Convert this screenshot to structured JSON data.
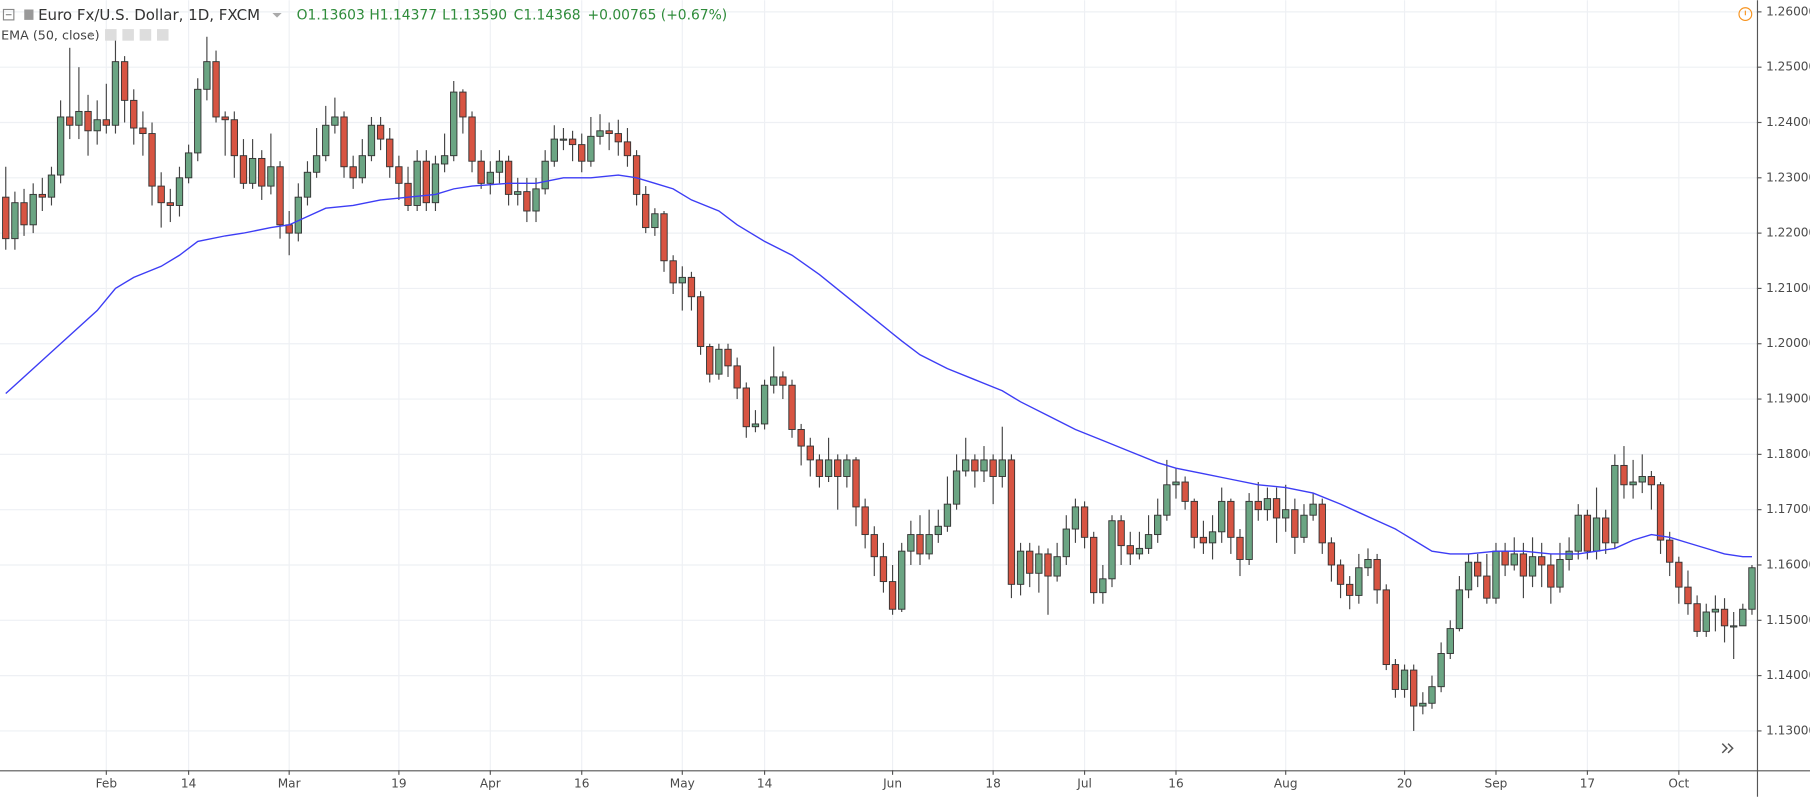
{
  "chart_data": {
    "type": "candlestick",
    "legend": {
      "symbol": "Euro Fx/U.S. Dollar, 1D, FXCM",
      "open": "O1.13603",
      "high": "H1.14377",
      "low": "L1.13590",
      "close": "C1.14368",
      "change": "+0.00765 (+0.67%)"
    },
    "up_color": "#6ba583",
    "down_color": "#d75442",
    "grid": true,
    "ylim": [
      1.1229,
      1.2621
    ],
    "yticks": [
      {
        "value": 1.13,
        "label": "1.13000"
      },
      {
        "value": 1.14,
        "label": "1.14000"
      },
      {
        "value": 1.15,
        "label": "1.15000"
      },
      {
        "value": 1.16,
        "label": "1.16000"
      },
      {
        "value": 1.17,
        "label": "1.17000"
      },
      {
        "value": 1.18,
        "label": "1.18000"
      },
      {
        "value": 1.19,
        "label": "1.19000"
      },
      {
        "value": 1.2,
        "label": "1.20000"
      },
      {
        "value": 1.21,
        "label": "1.21000"
      },
      {
        "value": 1.22,
        "label": "1.22000"
      },
      {
        "value": 1.23,
        "label": "1.23000"
      },
      {
        "value": 1.24,
        "label": "1.24000"
      },
      {
        "value": 1.25,
        "label": "1.25000"
      },
      {
        "value": 1.26,
        "label": "1.26000"
      }
    ],
    "xlim": [
      -0.63,
      191.54
    ],
    "xticks": [
      {
        "value": 11,
        "label": "Feb"
      },
      {
        "value": 20,
        "label": "14"
      },
      {
        "value": 31,
        "label": "Mar"
      },
      {
        "value": 43,
        "label": "19"
      },
      {
        "value": 53,
        "label": "Apr"
      },
      {
        "value": 63,
        "label": "16"
      },
      {
        "value": 74,
        "label": "May"
      },
      {
        "value": 83,
        "label": "14"
      },
      {
        "value": 97,
        "label": "Jun"
      },
      {
        "value": 108,
        "label": "18"
      },
      {
        "value": 118,
        "label": "Jul"
      },
      {
        "value": 128,
        "label": "16"
      },
      {
        "value": 140,
        "label": "Aug"
      },
      {
        "value": 153,
        "label": "20"
      },
      {
        "value": 163,
        "label": "Sep"
      },
      {
        "value": 173,
        "label": "17"
      },
      {
        "value": 183,
        "label": "Oct"
      }
    ],
    "open": [
      1.2265,
      1.219,
      1.2255,
      1.2215,
      1.227,
      1.2265,
      1.2305,
      1.241,
      1.2395,
      1.242,
      1.2385,
      1.2405,
      1.2395,
      1.251,
      1.244,
      1.239,
      1.238,
      1.2285,
      1.2255,
      1.225,
      1.23,
      1.2345,
      1.246,
      1.251,
      1.241,
      1.2405,
      1.234,
      1.229,
      1.2335,
      1.2285,
      1.232,
      1.2215,
      1.22,
      1.2265,
      1.231,
      1.234,
      1.2395,
      1.241,
      1.232,
      1.23,
      1.234,
      1.2395,
      1.237,
      1.232,
      1.229,
      1.225,
      1.233,
      1.2255,
      1.2325,
      1.234,
      1.2455,
      1.241,
      1.233,
      1.229,
      1.231,
      1.233,
      1.227,
      1.2275,
      1.224,
      1.228,
      1.233,
      1.237,
      1.237,
      1.236,
      1.233,
      1.2375,
      1.2385,
      1.238,
      1.2365,
      1.234,
      1.227,
      1.221,
      1.2235,
      1.215,
      1.211,
      1.212,
      1.2085,
      1.1995,
      1.1945,
      1.199,
      1.196,
      1.192,
      1.185,
      1.1855,
      1.1925,
      1.194,
      1.1925,
      1.1845,
      1.1815,
      1.179,
      1.176,
      1.179,
      1.176,
      1.179,
      1.1705,
      1.1655,
      1.1615,
      1.157,
      1.152,
      1.1625,
      1.1655,
      1.162,
      1.1655,
      1.167,
      1.171,
      1.177,
      1.179,
      1.177,
      1.179,
      1.176,
      1.179,
      1.1565,
      1.1625,
      1.1585,
      1.162,
      1.158,
      1.1615,
      1.1665,
      1.1705,
      1.165,
      1.155,
      1.1575,
      1.168,
      1.1635,
      1.162,
      1.163,
      1.1655,
      1.169,
      1.1745,
      1.175,
      1.1715,
      1.165,
      1.164,
      1.166,
      1.1715,
      1.165,
      1.161,
      1.1715,
      1.17,
      1.172,
      1.1685,
      1.17,
      1.165,
      1.169,
      1.171,
      1.164,
      1.16,
      1.1565,
      1.1545,
      1.1595,
      1.161,
      1.1555,
      1.142,
      1.1375,
      1.141,
      1.1345,
      1.135,
      1.138,
      1.144,
      1.1485,
      1.1555,
      1.1605,
      1.158,
      1.154,
      1.1625,
      1.16,
      1.162,
      1.158,
      1.1615,
      1.16,
      1.156,
      1.161,
      1.1625,
      1.169,
      1.1625,
      1.1685,
      1.164,
      1.178,
      1.1745,
      1.175,
      1.176,
      1.1745,
      1.1645,
      1.1605,
      1.156,
      1.153,
      1.148,
      1.1515,
      1.152,
      1.149,
      1.149,
      1.152
    ],
    "high": [
      1.232,
      1.2275,
      1.228,
      1.229,
      1.23,
      1.232,
      1.244,
      1.2535,
      1.25,
      1.245,
      1.244,
      1.247,
      1.2555,
      1.252,
      1.246,
      1.242,
      1.24,
      1.231,
      1.228,
      1.232,
      1.236,
      1.248,
      1.2555,
      1.253,
      1.242,
      1.242,
      1.237,
      1.237,
      1.235,
      1.238,
      1.233,
      1.224,
      1.229,
      1.233,
      1.239,
      1.243,
      1.2445,
      1.242,
      1.234,
      1.237,
      1.241,
      1.241,
      1.239,
      1.234,
      1.232,
      1.235,
      1.235,
      1.234,
      1.238,
      1.2475,
      1.246,
      1.242,
      1.235,
      1.233,
      1.235,
      1.234,
      1.23,
      1.23,
      1.23,
      1.235,
      1.2395,
      1.239,
      1.2385,
      1.238,
      1.241,
      1.2415,
      1.24,
      1.2405,
      1.239,
      1.235,
      1.2285,
      1.2245,
      1.224,
      1.216,
      1.214,
      1.213,
      1.2095,
      1.2,
      1.2,
      1.2,
      1.1975,
      1.193,
      1.188,
      1.1935,
      1.1995,
      1.195,
      1.1935,
      1.1855,
      1.183,
      1.18,
      1.183,
      1.18,
      1.18,
      1.1795,
      1.172,
      1.167,
      1.164,
      1.16,
      1.164,
      1.168,
      1.169,
      1.17,
      1.17,
      1.176,
      1.18,
      1.183,
      1.18,
      1.1815,
      1.18,
      1.185,
      1.18,
      1.164,
      1.164,
      1.1635,
      1.163,
      1.164,
      1.169,
      1.172,
      1.1715,
      1.166,
      1.16,
      1.169,
      1.169,
      1.166,
      1.166,
      1.169,
      1.172,
      1.179,
      1.1775,
      1.176,
      1.172,
      1.168,
      1.169,
      1.174,
      1.172,
      1.1665,
      1.173,
      1.175,
      1.174,
      1.174,
      1.1745,
      1.172,
      1.171,
      1.173,
      1.172,
      1.165,
      1.161,
      1.158,
      1.162,
      1.163,
      1.162,
      1.1565,
      1.143,
      1.142,
      1.142,
      1.137,
      1.14,
      1.146,
      1.15,
      1.158,
      1.162,
      1.162,
      1.162,
      1.164,
      1.164,
      1.165,
      1.164,
      1.165,
      1.164,
      1.162,
      1.164,
      1.165,
      1.171,
      1.17,
      1.174,
      1.17,
      1.18,
      1.1815,
      1.179,
      1.18,
      1.177,
      1.175,
      1.166,
      1.1615,
      1.159,
      1.1545,
      1.153,
      1.1545,
      1.154,
      1.1515,
      1.153,
      1.16
    ],
    "low": [
      1.217,
      1.217,
      1.2195,
      1.22,
      1.224,
      1.225,
      1.229,
      1.237,
      1.237,
      1.234,
      1.236,
      1.238,
      1.238,
      1.24,
      1.236,
      1.234,
      1.225,
      1.221,
      1.222,
      1.223,
      1.229,
      1.233,
      1.244,
      1.24,
      1.234,
      1.23,
      1.228,
      1.228,
      1.226,
      1.227,
      1.219,
      1.216,
      1.2185,
      1.225,
      1.23,
      1.233,
      1.238,
      1.23,
      1.228,
      1.229,
      1.233,
      1.235,
      1.23,
      1.226,
      1.224,
      1.224,
      1.224,
      1.224,
      1.231,
      1.233,
      1.238,
      1.231,
      1.228,
      1.227,
      1.229,
      1.225,
      1.225,
      1.222,
      1.222,
      1.227,
      1.232,
      1.235,
      1.233,
      1.231,
      1.232,
      1.236,
      1.235,
      1.234,
      1.232,
      1.225,
      1.22,
      1.2195,
      1.213,
      1.209,
      1.206,
      1.206,
      1.198,
      1.193,
      1.1935,
      1.194,
      1.19,
      1.183,
      1.184,
      1.1845,
      1.191,
      1.19,
      1.183,
      1.178,
      1.176,
      1.174,
      1.175,
      1.17,
      1.174,
      1.167,
      1.163,
      1.158,
      1.155,
      1.151,
      1.1515,
      1.16,
      1.16,
      1.161,
      1.164,
      1.166,
      1.17,
      1.176,
      1.174,
      1.175,
      1.171,
      1.174,
      1.154,
      1.1545,
      1.156,
      1.155,
      1.151,
      1.157,
      1.16,
      1.164,
      1.163,
      1.153,
      1.153,
      1.156,
      1.16,
      1.16,
      1.161,
      1.162,
      1.164,
      1.168,
      1.172,
      1.17,
      1.163,
      1.162,
      1.161,
      1.164,
      1.162,
      1.158,
      1.16,
      1.168,
      1.168,
      1.164,
      1.166,
      1.162,
      1.164,
      1.168,
      1.162,
      1.157,
      1.154,
      1.152,
      1.153,
      1.158,
      1.153,
      1.141,
      1.136,
      1.136,
      1.13,
      1.133,
      1.134,
      1.137,
      1.143,
      1.148,
      1.154,
      1.156,
      1.153,
      1.153,
      1.158,
      1.159,
      1.154,
      1.156,
      1.156,
      1.153,
      1.155,
      1.159,
      1.161,
      1.161,
      1.161,
      1.162,
      1.163,
      1.172,
      1.172,
      1.173,
      1.17,
      1.162,
      1.158,
      1.153,
      1.151,
      1.147,
      1.147,
      1.148,
      1.146,
      1.143,
      1.149,
      1.151
    ],
    "close": [
      1.219,
      1.2255,
      1.2215,
      1.227,
      1.2265,
      1.2305,
      1.241,
      1.2395,
      1.242,
      1.2385,
      1.2405,
      1.2395,
      1.251,
      1.244,
      1.239,
      1.238,
      1.2285,
      1.2255,
      1.225,
      1.23,
      1.2345,
      1.246,
      1.251,
      1.241,
      1.2405,
      1.234,
      1.229,
      1.2335,
      1.2285,
      1.232,
      1.2215,
      1.22,
      1.2265,
      1.231,
      1.234,
      1.2395,
      1.241,
      1.232,
      1.23,
      1.234,
      1.2395,
      1.237,
      1.232,
      1.229,
      1.225,
      1.233,
      1.2255,
      1.2325,
      1.234,
      1.2455,
      1.241,
      1.233,
      1.229,
      1.231,
      1.233,
      1.227,
      1.2275,
      1.224,
      1.228,
      1.233,
      1.237,
      1.237,
      1.236,
      1.233,
      1.2375,
      1.2385,
      1.238,
      1.2365,
      1.234,
      1.227,
      1.221,
      1.2235,
      1.215,
      1.211,
      1.212,
      1.2085,
      1.1995,
      1.1945,
      1.199,
      1.196,
      1.192,
      1.185,
      1.1855,
      1.1925,
      1.194,
      1.1925,
      1.1845,
      1.1815,
      1.179,
      1.176,
      1.179,
      1.176,
      1.179,
      1.1705,
      1.1655,
      1.1615,
      1.157,
      1.152,
      1.1625,
      1.1655,
      1.162,
      1.1655,
      1.167,
      1.171,
      1.177,
      1.179,
      1.177,
      1.179,
      1.176,
      1.179,
      1.1565,
      1.1625,
      1.1585,
      1.162,
      1.158,
      1.1615,
      1.1665,
      1.1705,
      1.165,
      1.155,
      1.1575,
      1.168,
      1.1635,
      1.162,
      1.163,
      1.1655,
      1.169,
      1.1745,
      1.175,
      1.1715,
      1.165,
      1.164,
      1.166,
      1.1715,
      1.165,
      1.161,
      1.1715,
      1.17,
      1.172,
      1.1685,
      1.17,
      1.165,
      1.169,
      1.171,
      1.164,
      1.16,
      1.1565,
      1.1545,
      1.1595,
      1.161,
      1.1555,
      1.142,
      1.1375,
      1.141,
      1.1345,
      1.135,
      1.138,
      1.144,
      1.1485,
      1.1555,
      1.1605,
      1.158,
      1.154,
      1.1625,
      1.16,
      1.162,
      1.158,
      1.1615,
      1.16,
      1.156,
      1.161,
      1.1625,
      1.169,
      1.1625,
      1.1685,
      1.164,
      1.178,
      1.1745,
      1.175,
      1.176,
      1.1745,
      1.1645,
      1.1605,
      1.156,
      1.153,
      1.148,
      1.1515,
      1.152,
      1.149,
      1.149,
      1.152,
      1.1595
    ],
    "overlays": [
      {
        "name": "EMA (50, close)",
        "color": "#3d3df5",
        "x": [
          0,
          5,
          10,
          12,
          14,
          17,
          19,
          21,
          24,
          26,
          29,
          31,
          33,
          35,
          38,
          41,
          44,
          47,
          49,
          51,
          55,
          58,
          61,
          64,
          67,
          69,
          71,
          73,
          75,
          78,
          80,
          83,
          86,
          89,
          92,
          95,
          98,
          100,
          103,
          106,
          109,
          111,
          114,
          117,
          120,
          123,
          126,
          128,
          131,
          134,
          137,
          140,
          143,
          146,
          148,
          150,
          152,
          154,
          156,
          158,
          160,
          163,
          166,
          169,
          172,
          174,
          176,
          178,
          180,
          182,
          184,
          186,
          188,
          190,
          191
        ],
        "values": [
          1.191,
          1.1985,
          1.206,
          1.21,
          1.212,
          1.214,
          1.216,
          1.2185,
          1.2195,
          1.22,
          1.221,
          1.2215,
          1.223,
          1.2245,
          1.225,
          1.226,
          1.2265,
          1.227,
          1.228,
          1.2285,
          1.229,
          1.229,
          1.23,
          1.23,
          1.2305,
          1.23,
          1.229,
          1.228,
          1.226,
          1.224,
          1.2215,
          1.2185,
          1.216,
          1.2125,
          1.2085,
          1.2045,
          1.2005,
          1.198,
          1.1955,
          1.1935,
          1.1915,
          1.1895,
          1.187,
          1.1845,
          1.1825,
          1.1805,
          1.1785,
          1.1775,
          1.1765,
          1.1755,
          1.1745,
          1.174,
          1.173,
          1.171,
          1.1695,
          1.168,
          1.1665,
          1.1645,
          1.1625,
          1.162,
          1.162,
          1.1625,
          1.1625,
          1.162,
          1.162,
          1.1625,
          1.163,
          1.1645,
          1.1655,
          1.165,
          1.164,
          1.163,
          1.162,
          1.1615,
          1.1615
        ]
      }
    ]
  }
}
